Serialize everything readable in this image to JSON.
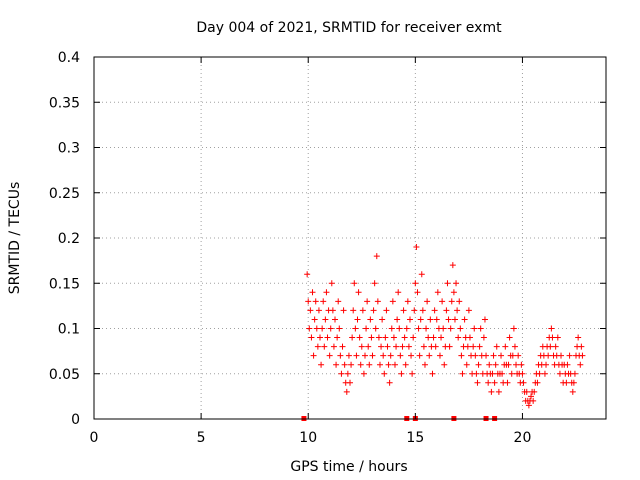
{
  "chart_data": {
    "type": "scatter",
    "title": "Day 004 of 2021, SRMTID for receiver exmt",
    "xlabel": "GPS time / hours",
    "ylabel": "SRMTID / TECUs",
    "xlim": [
      0,
      23.9
    ],
    "ylim": [
      0,
      0.4
    ],
    "xticks": [
      0,
      5,
      10,
      15,
      20
    ],
    "xtick_labels": [
      "0",
      "5",
      "10",
      "15",
      "20"
    ],
    "yticks": [
      0,
      0.05,
      0.1,
      0.15,
      0.2,
      0.25,
      0.3,
      0.35,
      0.4
    ],
    "ytick_labels": [
      "0",
      "0.05",
      "0.1",
      "0.15",
      "0.2",
      "0.25",
      "0.3",
      "0.35",
      "0.4"
    ],
    "grid": true,
    "marker": "+",
    "color": "#ff0000",
    "bottom_markers_x": [
      9.8,
      14.6,
      15.0,
      16.8,
      18.3,
      18.7
    ],
    "series": [
      {
        "name": "SRMTID",
        "points": [
          [
            9.95,
            0.16
          ],
          [
            10.0,
            0.13
          ],
          [
            10.05,
            0.1
          ],
          [
            10.1,
            0.12
          ],
          [
            10.15,
            0.09
          ],
          [
            10.2,
            0.14
          ],
          [
            10.25,
            0.07
          ],
          [
            10.3,
            0.11
          ],
          [
            10.35,
            0.13
          ],
          [
            10.4,
            0.1
          ],
          [
            10.45,
            0.08
          ],
          [
            10.5,
            0.12
          ],
          [
            10.55,
            0.09
          ],
          [
            10.6,
            0.06
          ],
          [
            10.65,
            0.1
          ],
          [
            10.7,
            0.13
          ],
          [
            10.75,
            0.08
          ],
          [
            10.8,
            0.11
          ],
          [
            10.85,
            0.14
          ],
          [
            10.9,
            0.09
          ],
          [
            10.95,
            0.12
          ],
          [
            11.0,
            0.07
          ],
          [
            11.05,
            0.1
          ],
          [
            11.1,
            0.15
          ],
          [
            11.15,
            0.12
          ],
          [
            11.2,
            0.08
          ],
          [
            11.25,
            0.11
          ],
          [
            11.3,
            0.06
          ],
          [
            11.35,
            0.09
          ],
          [
            11.4,
            0.13
          ],
          [
            11.45,
            0.1
          ],
          [
            11.5,
            0.07
          ],
          [
            11.55,
            0.05
          ],
          [
            11.6,
            0.08
          ],
          [
            11.65,
            0.12
          ],
          [
            11.7,
            0.06
          ],
          [
            11.75,
            0.04
          ],
          [
            11.8,
            0.03
          ],
          [
            11.85,
            0.05
          ],
          [
            11.9,
            0.07
          ],
          [
            11.95,
            0.04
          ],
          [
            12.0,
            0.06
          ],
          [
            12.05,
            0.09
          ],
          [
            12.1,
            0.12
          ],
          [
            12.15,
            0.15
          ],
          [
            12.2,
            0.1
          ],
          [
            12.25,
            0.07
          ],
          [
            12.3,
            0.11
          ],
          [
            12.35,
            0.14
          ],
          [
            12.4,
            0.09
          ],
          [
            12.45,
            0.06
          ],
          [
            12.5,
            0.08
          ],
          [
            12.55,
            0.12
          ],
          [
            12.6,
            0.05
          ],
          [
            12.65,
            0.07
          ],
          [
            12.7,
            0.1
          ],
          [
            12.75,
            0.13
          ],
          [
            12.8,
            0.08
          ],
          [
            12.85,
            0.06
          ],
          [
            12.9,
            0.11
          ],
          [
            12.95,
            0.09
          ],
          [
            13.0,
            0.07
          ],
          [
            13.05,
            0.12
          ],
          [
            13.1,
            0.15
          ],
          [
            13.15,
            0.1
          ],
          [
            13.2,
            0.18
          ],
          [
            13.25,
            0.13
          ],
          [
            13.3,
            0.09
          ],
          [
            13.35,
            0.06
          ],
          [
            13.4,
            0.08
          ],
          [
            13.45,
            0.11
          ],
          [
            13.5,
            0.07
          ],
          [
            13.55,
            0.05
          ],
          [
            13.6,
            0.09
          ],
          [
            13.65,
            0.12
          ],
          [
            13.7,
            0.08
          ],
          [
            13.75,
            0.06
          ],
          [
            13.8,
            0.04
          ],
          [
            13.85,
            0.07
          ],
          [
            13.9,
            0.1
          ],
          [
            13.95,
            0.13
          ],
          [
            14.0,
            0.09
          ],
          [
            14.05,
            0.06
          ],
          [
            14.1,
            0.08
          ],
          [
            14.15,
            0.11
          ],
          [
            14.2,
            0.14
          ],
          [
            14.25,
            0.1
          ],
          [
            14.3,
            0.07
          ],
          [
            14.35,
            0.05
          ],
          [
            14.4,
            0.08
          ],
          [
            14.45,
            0.12
          ],
          [
            14.5,
            0.09
          ],
          [
            14.55,
            0.06
          ],
          [
            14.6,
            0.1
          ],
          [
            14.65,
            0.13
          ],
          [
            14.7,
            0.08
          ],
          [
            14.75,
            0.11
          ],
          [
            14.8,
            0.07
          ],
          [
            14.85,
            0.05
          ],
          [
            14.9,
            0.09
          ],
          [
            14.95,
            0.12
          ],
          [
            15.0,
            0.15
          ],
          [
            15.05,
            0.19
          ],
          [
            15.1,
            0.14
          ],
          [
            15.15,
            0.1
          ],
          [
            15.2,
            0.07
          ],
          [
            15.25,
            0.11
          ],
          [
            15.3,
            0.16
          ],
          [
            15.35,
            0.12
          ],
          [
            15.4,
            0.08
          ],
          [
            15.45,
            0.06
          ],
          [
            15.5,
            0.1
          ],
          [
            15.55,
            0.13
          ],
          [
            15.6,
            0.09
          ],
          [
            15.65,
            0.07
          ],
          [
            15.7,
            0.11
          ],
          [
            15.75,
            0.08
          ],
          [
            15.8,
            0.05
          ],
          [
            15.85,
            0.09
          ],
          [
            15.9,
            0.12
          ],
          [
            15.95,
            0.08
          ],
          [
            16.0,
            0.11
          ],
          [
            16.05,
            0.14
          ],
          [
            16.1,
            0.1
          ],
          [
            16.15,
            0.07
          ],
          [
            16.2,
            0.09
          ],
          [
            16.25,
            0.13
          ],
          [
            16.3,
            0.1
          ],
          [
            16.35,
            0.06
          ],
          [
            16.4,
            0.08
          ],
          [
            16.45,
            0.12
          ],
          [
            16.5,
            0.15
          ],
          [
            16.55,
            0.11
          ],
          [
            16.6,
            0.08
          ],
          [
            16.65,
            0.1
          ],
          [
            16.7,
            0.13
          ],
          [
            16.75,
            0.17
          ],
          [
            16.8,
            0.14
          ],
          [
            16.85,
            0.11
          ],
          [
            16.9,
            0.15
          ],
          [
            16.95,
            0.12
          ],
          [
            17.0,
            0.09
          ],
          [
            17.05,
            0.13
          ],
          [
            17.1,
            0.1
          ],
          [
            17.15,
            0.07
          ],
          [
            17.2,
            0.05
          ],
          [
            17.25,
            0.08
          ],
          [
            17.3,
            0.11
          ],
          [
            17.35,
            0.09
          ],
          [
            17.4,
            0.06
          ],
          [
            17.45,
            0.08
          ],
          [
            17.5,
            0.12
          ],
          [
            17.55,
            0.09
          ],
          [
            17.6,
            0.07
          ],
          [
            17.65,
            0.05
          ],
          [
            17.7,
            0.08
          ],
          [
            17.75,
            0.1
          ],
          [
            17.8,
            0.07
          ],
          [
            17.85,
            0.05
          ],
          [
            17.9,
            0.04
          ],
          [
            17.95,
            0.06
          ],
          [
            18.0,
            0.08
          ],
          [
            18.05,
            0.1
          ],
          [
            18.1,
            0.07
          ],
          [
            18.15,
            0.05
          ],
          [
            18.2,
            0.09
          ],
          [
            18.25,
            0.11
          ],
          [
            18.3,
            0.07
          ],
          [
            18.35,
            0.05
          ],
          [
            18.4,
            0.04
          ],
          [
            18.45,
            0.06
          ],
          [
            18.5,
            0.05
          ],
          [
            18.55,
            0.03
          ],
          [
            18.6,
            0.05
          ],
          [
            18.65,
            0.07
          ],
          [
            18.7,
            0.04
          ],
          [
            18.75,
            0.06
          ],
          [
            18.8,
            0.08
          ],
          [
            18.85,
            0.05
          ],
          [
            18.9,
            0.03
          ],
          [
            18.95,
            0.05
          ],
          [
            19.0,
            0.07
          ],
          [
            19.05,
            0.05
          ],
          [
            19.1,
            0.04
          ],
          [
            19.15,
            0.06
          ],
          [
            19.2,
            0.08
          ],
          [
            19.25,
            0.06
          ],
          [
            19.3,
            0.04
          ],
          [
            19.35,
            0.06
          ],
          [
            19.4,
            0.09
          ],
          [
            19.45,
            0.07
          ],
          [
            19.5,
            0.05
          ],
          [
            19.55,
            0.07
          ],
          [
            19.6,
            0.1
          ],
          [
            19.65,
            0.08
          ],
          [
            19.7,
            0.06
          ],
          [
            19.75,
            0.05
          ],
          [
            19.8,
            0.07
          ],
          [
            19.85,
            0.05
          ],
          [
            19.9,
            0.04
          ],
          [
            19.95,
            0.06
          ],
          [
            20.0,
            0.05
          ],
          [
            20.05,
            0.04
          ],
          [
            20.1,
            0.03
          ],
          [
            20.15,
            0.02
          ],
          [
            20.2,
            0.03
          ],
          [
            20.25,
            0.02
          ],
          [
            20.3,
            0.015
          ],
          [
            20.35,
            0.02
          ],
          [
            20.4,
            0.025
          ],
          [
            20.45,
            0.03
          ],
          [
            20.5,
            0.02
          ],
          [
            20.55,
            0.03
          ],
          [
            20.6,
            0.04
          ],
          [
            20.65,
            0.05
          ],
          [
            20.7,
            0.04
          ],
          [
            20.75,
            0.06
          ],
          [
            20.8,
            0.05
          ],
          [
            20.85,
            0.07
          ],
          [
            20.9,
            0.06
          ],
          [
            20.95,
            0.08
          ],
          [
            21.0,
            0.07
          ],
          [
            21.05,
            0.05
          ],
          [
            21.1,
            0.06
          ],
          [
            21.15,
            0.08
          ],
          [
            21.2,
            0.07
          ],
          [
            21.25,
            0.09
          ],
          [
            21.3,
            0.08
          ],
          [
            21.35,
            0.1
          ],
          [
            21.4,
            0.09
          ],
          [
            21.45,
            0.07
          ],
          [
            21.5,
            0.06
          ],
          [
            21.55,
            0.08
          ],
          [
            21.6,
            0.07
          ],
          [
            21.65,
            0.09
          ],
          [
            21.7,
            0.06
          ],
          [
            21.75,
            0.05
          ],
          [
            21.8,
            0.07
          ],
          [
            21.85,
            0.06
          ],
          [
            21.9,
            0.04
          ],
          [
            21.95,
            0.06
          ],
          [
            22.0,
            0.05
          ],
          [
            22.05,
            0.04
          ],
          [
            22.1,
            0.06
          ],
          [
            22.15,
            0.05
          ],
          [
            22.2,
            0.07
          ],
          [
            22.25,
            0.05
          ],
          [
            22.3,
            0.04
          ],
          [
            22.35,
            0.03
          ],
          [
            22.4,
            0.04
          ],
          [
            22.45,
            0.05
          ],
          [
            22.5,
            0.07
          ],
          [
            22.55,
            0.08
          ],
          [
            22.6,
            0.09
          ],
          [
            22.65,
            0.07
          ],
          [
            22.7,
            0.06
          ],
          [
            22.75,
            0.08
          ],
          [
            22.8,
            0.07
          ]
        ]
      }
    ]
  }
}
